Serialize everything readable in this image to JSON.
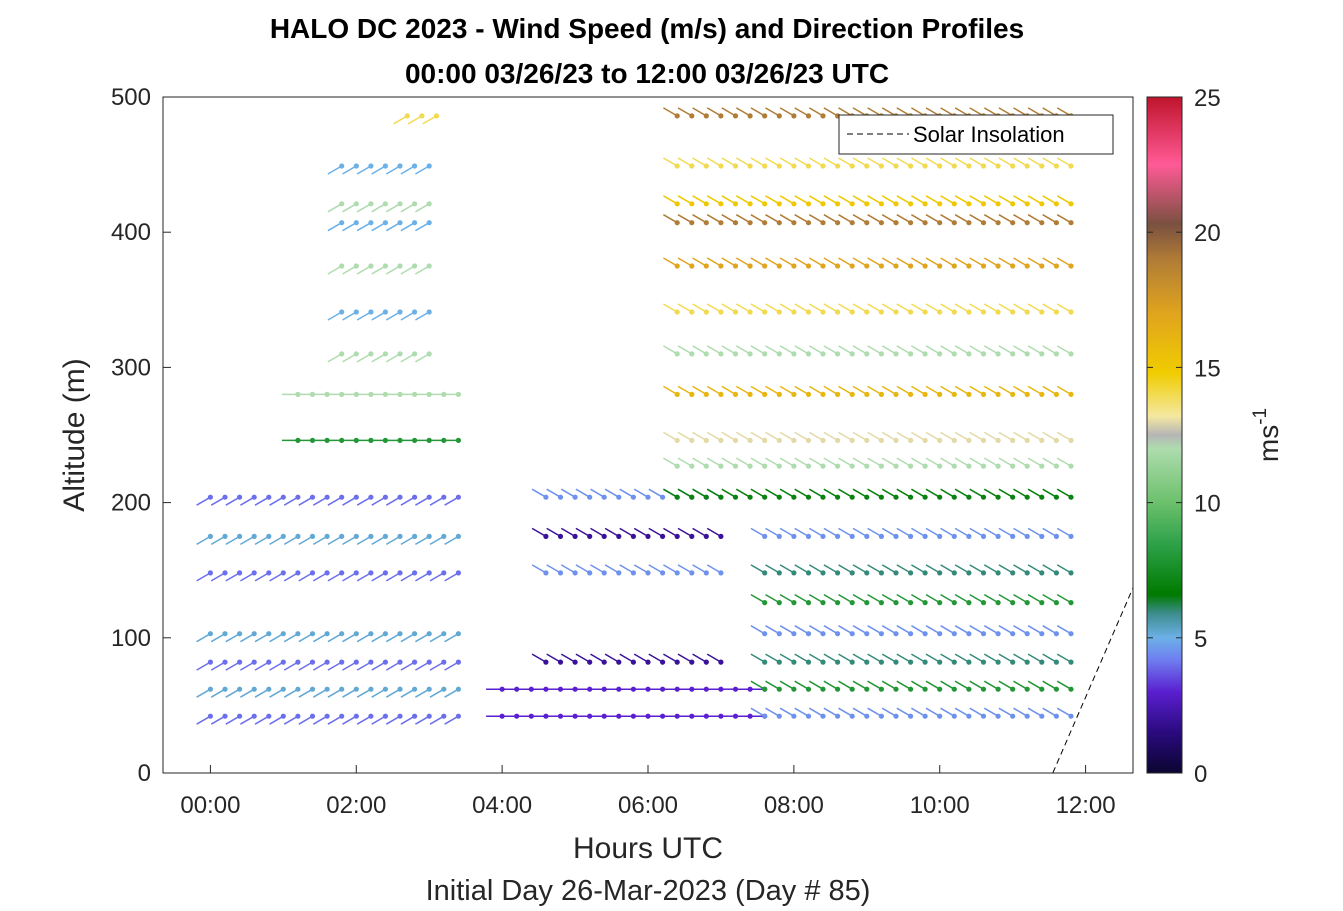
{
  "chart_data": {
    "type": "scatter",
    "title": "HALO DC 2023 - Wind Speed (m/s) and Direction Profiles",
    "subtitle": "00:00 03/26/23 to 12:00 03/26/23  UTC",
    "xlabel": "Hours UTC",
    "ylabel": "Altitude (m)",
    "footer": "Initial Day 26-Mar-2023 (Day # 85)",
    "xlim": [
      -0.65,
      12.65
    ],
    "ylim": [
      0,
      500
    ],
    "x_ticks": [
      {
        "value": 0,
        "label": "00:00"
      },
      {
        "value": 2,
        "label": "02:00"
      },
      {
        "value": 4,
        "label": "04:00"
      },
      {
        "value": 6,
        "label": "06:00"
      },
      {
        "value": 8,
        "label": "08:00"
      },
      {
        "value": 10,
        "label": "10:00"
      },
      {
        "value": 12,
        "label": "12:00"
      }
    ],
    "y_ticks": [
      {
        "value": 0,
        "label": "0"
      },
      {
        "value": 100,
        "label": "100"
      },
      {
        "value": 200,
        "label": "200"
      },
      {
        "value": 300,
        "label": "300"
      },
      {
        "value": 400,
        "label": "400"
      },
      {
        "value": 500,
        "label": "500"
      }
    ],
    "colorbar": {
      "label_base": "ms",
      "label_exp": "-1",
      "range": [
        0,
        25
      ],
      "ticks": [
        {
          "value": 0,
          "label": "0"
        },
        {
          "value": 5,
          "label": "5"
        },
        {
          "value": 10,
          "label": "10"
        },
        {
          "value": 15,
          "label": "15"
        },
        {
          "value": 20,
          "label": "20"
        },
        {
          "value": 25,
          "label": "25"
        }
      ],
      "stops": [
        {
          "v": 0,
          "c": "#0b0530"
        },
        {
          "v": 1.5,
          "c": "#2a0a7e"
        },
        {
          "v": 3,
          "c": "#5a1fd0"
        },
        {
          "v": 4.2,
          "c": "#6f7ff0"
        },
        {
          "v": 5,
          "c": "#6cb0e8"
        },
        {
          "v": 5.9,
          "c": "#3d8d8d"
        },
        {
          "v": 6.6,
          "c": "#007a00"
        },
        {
          "v": 8.5,
          "c": "#2fa24a"
        },
        {
          "v": 10,
          "c": "#6cc06c"
        },
        {
          "v": 12,
          "c": "#aedcae"
        },
        {
          "v": 12.5,
          "c": "#b5b5b5"
        },
        {
          "v": 13.2,
          "c": "#f4e8a0"
        },
        {
          "v": 14.8,
          "c": "#f0cc00"
        },
        {
          "v": 17,
          "c": "#e0a41e"
        },
        {
          "v": 19,
          "c": "#b07c36"
        },
        {
          "v": 20.3,
          "c": "#7a5040"
        },
        {
          "v": 22.5,
          "c": "#ff5a96"
        },
        {
          "v": 25,
          "c": "#c0142c"
        }
      ]
    },
    "legend": {
      "label": "Solar Insolation",
      "placement": "top-right"
    },
    "solar_insolation": {
      "x": [
        -0.65,
        11.55,
        12.65
      ],
      "y": [
        0,
        0,
        137
      ]
    },
    "altitudes": [
      42,
      62,
      82,
      103,
      126,
      148,
      175,
      204,
      227,
      246,
      280,
      310,
      341,
      375,
      407,
      421,
      449,
      486
    ],
    "time_step_hours": 0.2,
    "segments": [
      {
        "t0": 0.0,
        "t1": 3.4,
        "levels": [
          42,
          62,
          82,
          103,
          148,
          175,
          204
        ],
        "speed": 2,
        "dir": "southwest",
        "alt": [
          4.0,
          5.2
        ]
      },
      {
        "t0": 1.2,
        "t1": 3.4,
        "levels": [
          246,
          280
        ],
        "speed": 3,
        "dir": "west",
        "alt": [
          8,
          12
        ]
      },
      {
        "t0": 1.8,
        "t1": 3.1,
        "levels": [
          310,
          341,
          375,
          407,
          421,
          449
        ],
        "speed": 8,
        "dir": "southwest",
        "alt": [
          12,
          5
        ]
      },
      {
        "t0": 2.7,
        "t1": 3.1,
        "levels": [
          486
        ],
        "speed": 14.5,
        "dir": "southwest",
        "alt": [
          14
        ]
      },
      {
        "t0": 4.0,
        "t1": 7.6,
        "levels": [
          42,
          62
        ],
        "speed": 2.2,
        "dir": "west",
        "alt": [
          3
        ]
      },
      {
        "t0": 4.6,
        "t1": 7.0,
        "levels": [
          82,
          148,
          175,
          204
        ],
        "speed": 3,
        "dir": "northwest",
        "alt": [
          2,
          4.5
        ]
      },
      {
        "t0": 6.4,
        "t1": 11.8,
        "levels": [
          204,
          227,
          246
        ],
        "speed": 9,
        "dir": "northwest",
        "alt": [
          7,
          12,
          13
        ]
      },
      {
        "t0": 7.6,
        "t1": 11.8,
        "levels": [
          42,
          62,
          82,
          103,
          126,
          148,
          175
        ],
        "speed": 6,
        "dir": "northwest",
        "alt": [
          4.5,
          8,
          6
        ]
      },
      {
        "t0": 6.4,
        "t1": 11.8,
        "levels": [
          280,
          310,
          341,
          375
        ],
        "speed": 15,
        "dir": "northwest",
        "alt": [
          16,
          12,
          14,
          17
        ]
      },
      {
        "t0": 6.4,
        "t1": 11.8,
        "levels": [
          407,
          421,
          449,
          486
        ],
        "speed": 18,
        "dir": "northwest",
        "alt": [
          19,
          15,
          14
        ]
      }
    ]
  }
}
